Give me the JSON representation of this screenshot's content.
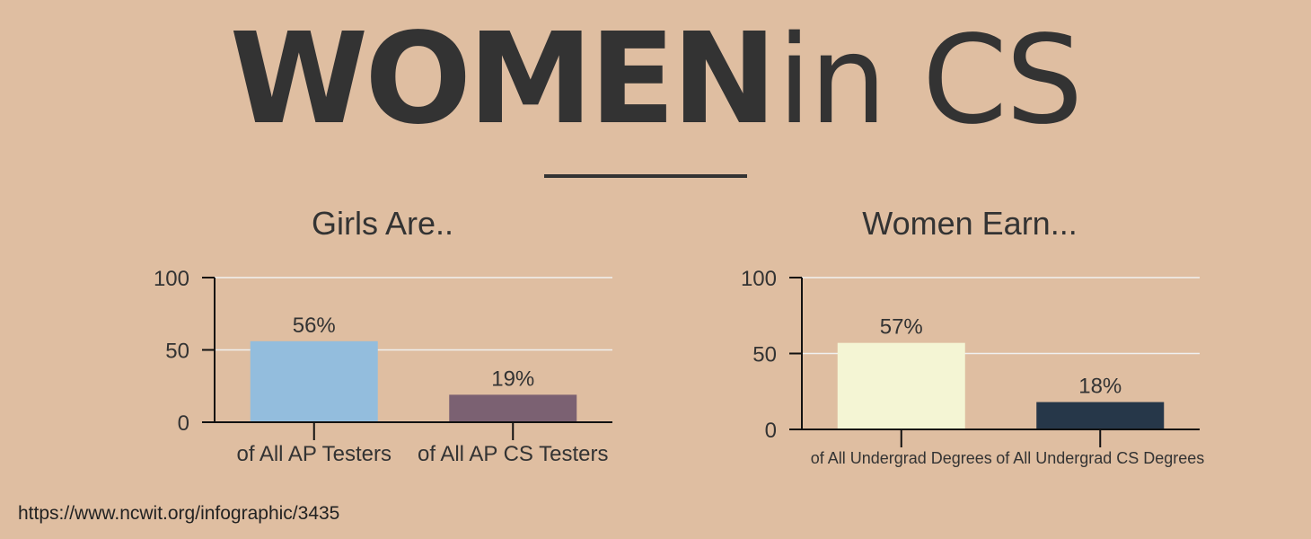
{
  "header": {
    "title_bold": "WOMEN",
    "title_light": "in CS"
  },
  "source_url": "https://www.ncwit.org/infographic/3435",
  "chart_data": [
    {
      "type": "bar",
      "title": "Girls Are..",
      "categories": [
        "of All AP Testers",
        "of All AP CS Testers"
      ],
      "values": [
        56,
        19
      ],
      "value_labels": [
        "56%",
        "19%"
      ],
      "colors": [
        "#93bddd",
        "#7b6172"
      ],
      "yticks": [
        0,
        50,
        100
      ],
      "ylim": [
        0,
        100
      ],
      "grid": true
    },
    {
      "type": "bar",
      "title": "Women Earn...",
      "categories": [
        "of All Undergrad Degrees",
        "of All Undergrad CS Degrees"
      ],
      "values": [
        57,
        18
      ],
      "value_labels": [
        "57%",
        "18%"
      ],
      "colors": [
        "#f4f5d4",
        "#263749"
      ],
      "yticks": [
        0,
        50,
        100
      ],
      "ylim": [
        0,
        100
      ],
      "grid": true
    }
  ]
}
